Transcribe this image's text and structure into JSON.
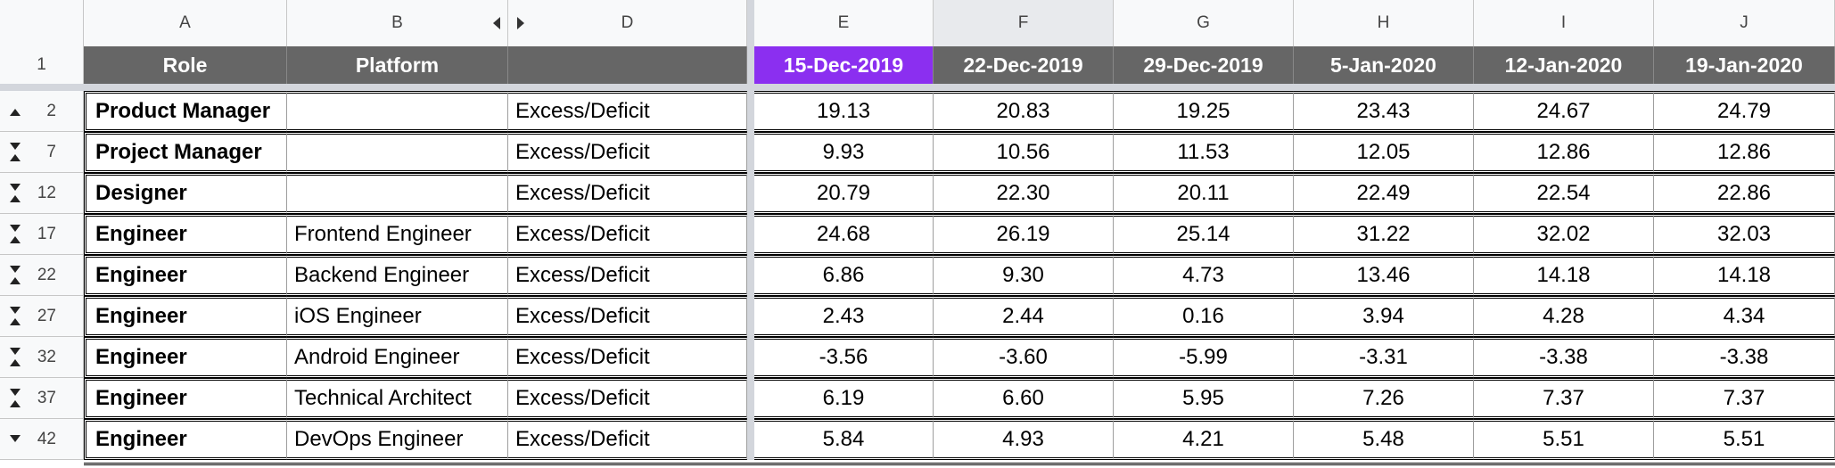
{
  "columns": {
    "a": "A",
    "b": "B",
    "d": "D",
    "e": "E",
    "f": "F",
    "g": "G",
    "h": "H",
    "i": "I",
    "j": "J"
  },
  "header_row": {
    "row_number": "1",
    "role": "Role",
    "platform": "Platform",
    "metric": "",
    "dates": [
      "15-Dec-2019",
      "22-Dec-2019",
      "29-Dec-2019",
      "5-Jan-2020",
      "12-Jan-2020",
      "19-Jan-2020"
    ]
  },
  "highlight_color": "#8b2ff0",
  "header_color": "#666666",
  "rows": [
    {
      "row_number": "2",
      "toggle": "collapse-up",
      "role": "Product Manager",
      "platform": "",
      "metric": "Excess/Deficit",
      "values": [
        "19.13",
        "20.83",
        "19.25",
        "23.43",
        "24.67",
        "24.79"
      ]
    },
    {
      "row_number": "7",
      "toggle": "expand-both",
      "role": "Project Manager",
      "platform": "",
      "metric": "Excess/Deficit",
      "values": [
        "9.93",
        "10.56",
        "11.53",
        "12.05",
        "12.86",
        "12.86"
      ]
    },
    {
      "row_number": "12",
      "toggle": "expand-both",
      "role": "Designer",
      "platform": "",
      "metric": "Excess/Deficit",
      "values": [
        "20.79",
        "22.30",
        "20.11",
        "22.49",
        "22.54",
        "22.86"
      ]
    },
    {
      "row_number": "17",
      "toggle": "expand-both",
      "role": "Engineer",
      "platform": "Frontend Engineer",
      "metric": "Excess/Deficit",
      "values": [
        "24.68",
        "26.19",
        "25.14",
        "31.22",
        "32.02",
        "32.03"
      ]
    },
    {
      "row_number": "22",
      "toggle": "expand-both",
      "role": "Engineer",
      "platform": "Backend Engineer",
      "metric": "Excess/Deficit",
      "values": [
        "6.86",
        "9.30",
        "4.73",
        "13.46",
        "14.18",
        "14.18"
      ]
    },
    {
      "row_number": "27",
      "toggle": "expand-both",
      "role": "Engineer",
      "platform": "iOS Engineer",
      "metric": "Excess/Deficit",
      "values": [
        "2.43",
        "2.44",
        "0.16",
        "3.94",
        "4.28",
        "4.34"
      ]
    },
    {
      "row_number": "32",
      "toggle": "expand-both",
      "role": "Engineer",
      "platform": "Android Engineer",
      "metric": "Excess/Deficit",
      "values": [
        "-3.56",
        "-3.60",
        "-5.99",
        "-3.31",
        "-3.38",
        "-3.38"
      ]
    },
    {
      "row_number": "37",
      "toggle": "expand-both",
      "role": "Engineer",
      "platform": "Technical Architect",
      "metric": "Excess/Deficit",
      "values": [
        "6.19",
        "6.60",
        "5.95",
        "7.26",
        "7.37",
        "7.37"
      ]
    },
    {
      "row_number": "42",
      "toggle": "expand-down",
      "role": "Engineer",
      "platform": "DevOps Engineer",
      "metric": "Excess/Deficit",
      "values": [
        "5.84",
        "4.93",
        "4.21",
        "5.48",
        "5.51",
        "5.51"
      ]
    }
  ]
}
